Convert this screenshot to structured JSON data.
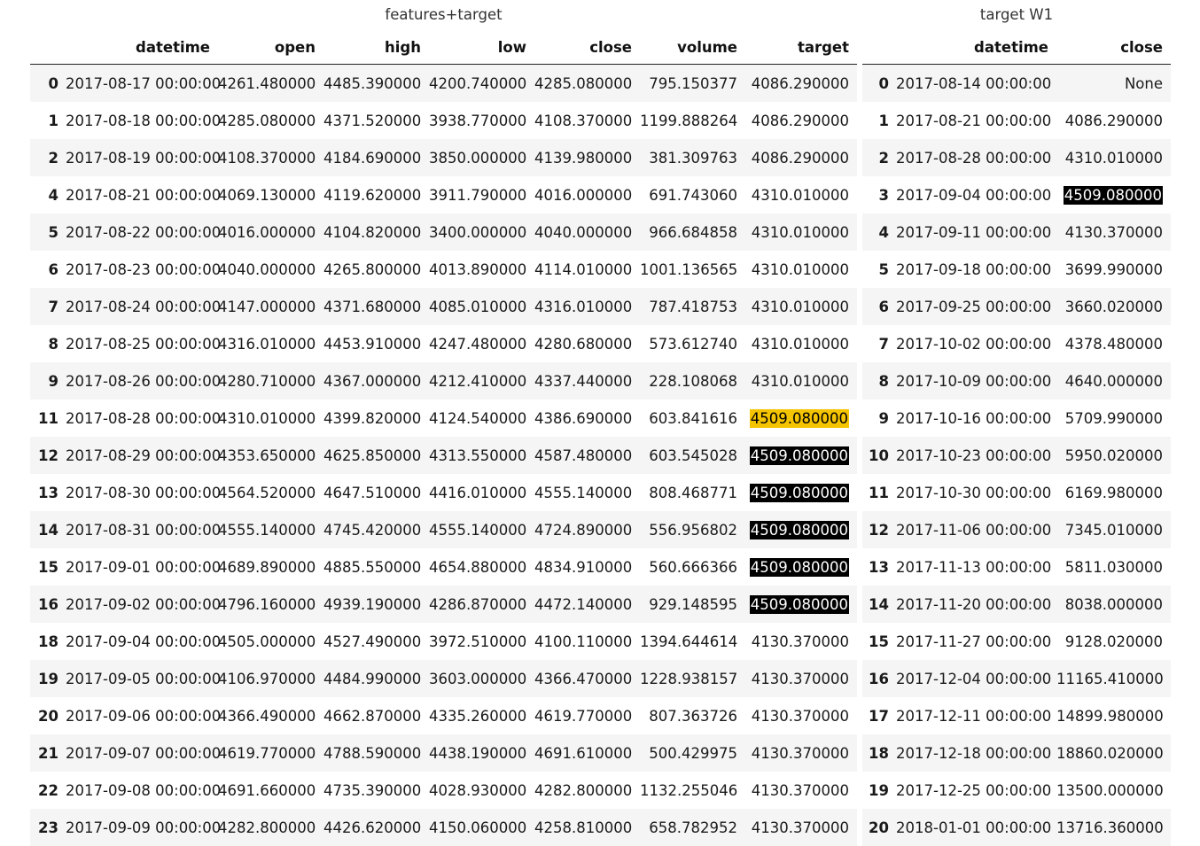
{
  "left": {
    "caption": "features+target",
    "columns": [
      "",
      "datetime",
      "open",
      "high",
      "low",
      "close",
      "volume",
      "target"
    ],
    "rows": [
      [
        "0",
        "2017-08-17 00:00:00",
        "4261.480000",
        "4485.390000",
        "4200.740000",
        "4285.080000",
        "795.150377",
        "4086.290000"
      ],
      [
        "1",
        "2017-08-18 00:00:00",
        "4285.080000",
        "4371.520000",
        "3938.770000",
        "4108.370000",
        "1199.888264",
        "4086.290000"
      ],
      [
        "2",
        "2017-08-19 00:00:00",
        "4108.370000",
        "4184.690000",
        "3850.000000",
        "4139.980000",
        "381.309763",
        "4086.290000"
      ],
      [
        "4",
        "2017-08-21 00:00:00",
        "4069.130000",
        "4119.620000",
        "3911.790000",
        "4016.000000",
        "691.743060",
        "4310.010000"
      ],
      [
        "5",
        "2017-08-22 00:00:00",
        "4016.000000",
        "4104.820000",
        "3400.000000",
        "4040.000000",
        "966.684858",
        "4310.010000"
      ],
      [
        "6",
        "2017-08-23 00:00:00",
        "4040.000000",
        "4265.800000",
        "4013.890000",
        "4114.010000",
        "1001.136565",
        "4310.010000"
      ],
      [
        "7",
        "2017-08-24 00:00:00",
        "4147.000000",
        "4371.680000",
        "4085.010000",
        "4316.010000",
        "787.418753",
        "4310.010000"
      ],
      [
        "8",
        "2017-08-25 00:00:00",
        "4316.010000",
        "4453.910000",
        "4247.480000",
        "4280.680000",
        "573.612740",
        "4310.010000"
      ],
      [
        "9",
        "2017-08-26 00:00:00",
        "4280.710000",
        "4367.000000",
        "4212.410000",
        "4337.440000",
        "228.108068",
        "4310.010000"
      ],
      [
        "11",
        "2017-08-28 00:00:00",
        "4310.010000",
        "4399.820000",
        "4124.540000",
        "4386.690000",
        "603.841616",
        "4509.080000"
      ],
      [
        "12",
        "2017-08-29 00:00:00",
        "4353.650000",
        "4625.850000",
        "4313.550000",
        "4587.480000",
        "603.545028",
        "4509.080000"
      ],
      [
        "13",
        "2017-08-30 00:00:00",
        "4564.520000",
        "4647.510000",
        "4416.010000",
        "4555.140000",
        "808.468771",
        "4509.080000"
      ],
      [
        "14",
        "2017-08-31 00:00:00",
        "4555.140000",
        "4745.420000",
        "4555.140000",
        "4724.890000",
        "556.956802",
        "4509.080000"
      ],
      [
        "15",
        "2017-09-01 00:00:00",
        "4689.890000",
        "4885.550000",
        "4654.880000",
        "4834.910000",
        "560.666366",
        "4509.080000"
      ],
      [
        "16",
        "2017-09-02 00:00:00",
        "4796.160000",
        "4939.190000",
        "4286.870000",
        "4472.140000",
        "929.148595",
        "4509.080000"
      ],
      [
        "18",
        "2017-09-04 00:00:00",
        "4505.000000",
        "4527.490000",
        "3972.510000",
        "4100.110000",
        "1394.644614",
        "4130.370000"
      ],
      [
        "19",
        "2017-09-05 00:00:00",
        "4106.970000",
        "4484.990000",
        "3603.000000",
        "4366.470000",
        "1228.938157",
        "4130.370000"
      ],
      [
        "20",
        "2017-09-06 00:00:00",
        "4366.490000",
        "4662.870000",
        "4335.260000",
        "4619.770000",
        "807.363726",
        "4130.370000"
      ],
      [
        "21",
        "2017-09-07 00:00:00",
        "4619.770000",
        "4788.590000",
        "4438.190000",
        "4691.610000",
        "500.429975",
        "4130.370000"
      ],
      [
        "22",
        "2017-09-08 00:00:00",
        "4691.660000",
        "4735.390000",
        "4028.930000",
        "4282.800000",
        "1132.255046",
        "4130.370000"
      ],
      [
        "23",
        "2017-09-09 00:00:00",
        "4282.800000",
        "4426.620000",
        "4150.060000",
        "4258.810000",
        "658.782952",
        "4130.370000"
      ]
    ],
    "highlight_target": {
      "yellow": [
        "11"
      ],
      "black": [
        "12",
        "13",
        "14",
        "15",
        "16"
      ]
    }
  },
  "right": {
    "caption": "target W1",
    "columns": [
      "",
      "datetime",
      "close"
    ],
    "rows": [
      [
        "0",
        "2017-08-14 00:00:00",
        "None"
      ],
      [
        "1",
        "2017-08-21 00:00:00",
        "4086.290000"
      ],
      [
        "2",
        "2017-08-28 00:00:00",
        "4310.010000"
      ],
      [
        "3",
        "2017-09-04 00:00:00",
        "4509.080000"
      ],
      [
        "4",
        "2017-09-11 00:00:00",
        "4130.370000"
      ],
      [
        "5",
        "2017-09-18 00:00:00",
        "3699.990000"
      ],
      [
        "6",
        "2017-09-25 00:00:00",
        "3660.020000"
      ],
      [
        "7",
        "2017-10-02 00:00:00",
        "4378.480000"
      ],
      [
        "8",
        "2017-10-09 00:00:00",
        "4640.000000"
      ],
      [
        "9",
        "2017-10-16 00:00:00",
        "5709.990000"
      ],
      [
        "10",
        "2017-10-23 00:00:00",
        "5950.020000"
      ],
      [
        "11",
        "2017-10-30 00:00:00",
        "6169.980000"
      ],
      [
        "12",
        "2017-11-06 00:00:00",
        "7345.010000"
      ],
      [
        "13",
        "2017-11-13 00:00:00",
        "5811.030000"
      ],
      [
        "14",
        "2017-11-20 00:00:00",
        "8038.000000"
      ],
      [
        "15",
        "2017-11-27 00:00:00",
        "9128.020000"
      ],
      [
        "16",
        "2017-12-04 00:00:00",
        "11165.410000"
      ],
      [
        "17",
        "2017-12-11 00:00:00",
        "14899.980000"
      ],
      [
        "18",
        "2017-12-18 00:00:00",
        "18860.020000"
      ],
      [
        "19",
        "2017-12-25 00:00:00",
        "13500.000000"
      ],
      [
        "20",
        "2018-01-01 00:00:00",
        "13716.360000"
      ]
    ],
    "highlight_close": {
      "black": [
        "3"
      ]
    }
  },
  "colors": {
    "stripe": "#f5f5f5",
    "highlight_yellow": "#f5c400",
    "highlight_black": "#000000"
  }
}
